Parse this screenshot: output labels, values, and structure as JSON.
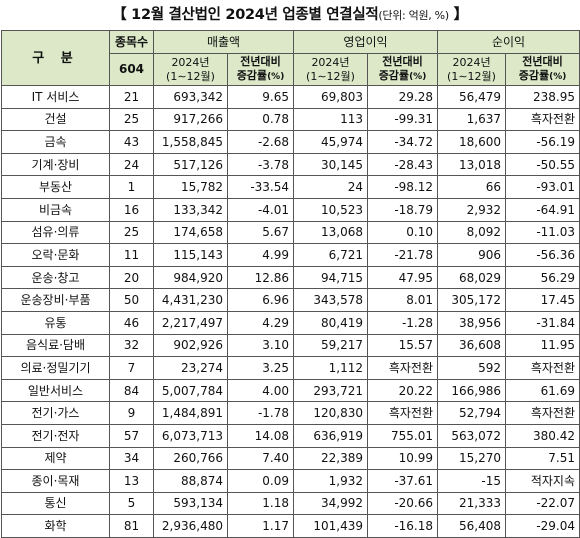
{
  "title": {
    "open": "【",
    "main": " 12월 결산법인 2024년 업종별 연결실적",
    "unit": "(단위: 억원, %)",
    "close": " 】"
  },
  "header": {
    "gubun": "구  분",
    "count_label": "종목수",
    "count_total": "604",
    "sales": "매출액",
    "op_income": "영업이익",
    "net_income": "순이익",
    "period_year": "2024년",
    "period_range": "(1∼12월)",
    "yoy_line1": "전년대비",
    "yoy_line2": "증감률",
    "yoy_unit": "(%)"
  },
  "rows": [
    {
      "name": "IT 서비스",
      "count": "21",
      "sales": "693,342",
      "sales_yoy": "9.65",
      "op": "69,803",
      "op_yoy": "29.28",
      "net": "56,479",
      "net_yoy": "238.95"
    },
    {
      "name": "건설",
      "count": "25",
      "sales": "917,266",
      "sales_yoy": "0.78",
      "op": "113",
      "op_yoy": "-99.31",
      "net": "1,637",
      "net_yoy": "흑자전환"
    },
    {
      "name": "금속",
      "count": "43",
      "sales": "1,558,845",
      "sales_yoy": "-2.68",
      "op": "45,974",
      "op_yoy": "-34.72",
      "net": "18,600",
      "net_yoy": "-56.19"
    },
    {
      "name": "기계·장비",
      "count": "24",
      "sales": "517,126",
      "sales_yoy": "-3.78",
      "op": "30,145",
      "op_yoy": "-28.43",
      "net": "13,018",
      "net_yoy": "-50.55"
    },
    {
      "name": "부동산",
      "count": "1",
      "sales": "15,782",
      "sales_yoy": "-33.54",
      "op": "24",
      "op_yoy": "-98.12",
      "net": "66",
      "net_yoy": "-93.01"
    },
    {
      "name": "비금속",
      "count": "16",
      "sales": "133,342",
      "sales_yoy": "-4.01",
      "op": "10,523",
      "op_yoy": "-18.79",
      "net": "2,932",
      "net_yoy": "-64.91"
    },
    {
      "name": "섬유·의류",
      "count": "25",
      "sales": "174,658",
      "sales_yoy": "5.67",
      "op": "13,068",
      "op_yoy": "0.10",
      "net": "8,092",
      "net_yoy": "-11.03"
    },
    {
      "name": "오락·문화",
      "count": "11",
      "sales": "115,143",
      "sales_yoy": "4.99",
      "op": "6,721",
      "op_yoy": "-21.78",
      "net": "906",
      "net_yoy": "-56.36"
    },
    {
      "name": "운송·창고",
      "count": "20",
      "sales": "984,920",
      "sales_yoy": "12.86",
      "op": "94,715",
      "op_yoy": "47.95",
      "net": "68,029",
      "net_yoy": "56.29"
    },
    {
      "name": "운송장비·부품",
      "count": "50",
      "sales": "4,431,230",
      "sales_yoy": "6.96",
      "op": "343,578",
      "op_yoy": "8.01",
      "net": "305,172",
      "net_yoy": "17.45"
    },
    {
      "name": "유통",
      "count": "46",
      "sales": "2,217,497",
      "sales_yoy": "4.29",
      "op": "80,419",
      "op_yoy": "-1.28",
      "net": "38,956",
      "net_yoy": "-31.84"
    },
    {
      "name": "음식료·담배",
      "count": "32",
      "sales": "902,926",
      "sales_yoy": "3.10",
      "op": "59,217",
      "op_yoy": "15.57",
      "net": "36,608",
      "net_yoy": "11.95"
    },
    {
      "name": "의료·정밀기기",
      "count": "7",
      "sales": "23,274",
      "sales_yoy": "3.25",
      "op": "1,112",
      "op_yoy": "흑자전환",
      "net": "592",
      "net_yoy": "흑자전환"
    },
    {
      "name": "일반서비스",
      "count": "84",
      "sales": "5,007,784",
      "sales_yoy": "4.00",
      "op": "293,721",
      "op_yoy": "20.22",
      "net": "166,986",
      "net_yoy": "61.69"
    },
    {
      "name": "전기·가스",
      "count": "9",
      "sales": "1,484,891",
      "sales_yoy": "-1.78",
      "op": "120,830",
      "op_yoy": "흑자전환",
      "net": "52,794",
      "net_yoy": "흑자전환"
    },
    {
      "name": "전기·전자",
      "count": "57",
      "sales": "6,073,713",
      "sales_yoy": "14.08",
      "op": "636,919",
      "op_yoy": "755.01",
      "net": "563,072",
      "net_yoy": "380.42"
    },
    {
      "name": "제약",
      "count": "34",
      "sales": "260,766",
      "sales_yoy": "7.40",
      "op": "22,389",
      "op_yoy": "10.99",
      "net": "15,270",
      "net_yoy": "7.51"
    },
    {
      "name": "종이·목재",
      "count": "13",
      "sales": "88,874",
      "sales_yoy": "0.09",
      "op": "1,932",
      "op_yoy": "-37.61",
      "net": "-15",
      "net_yoy": "적자지속"
    },
    {
      "name": "통신",
      "count": "5",
      "sales": "593,134",
      "sales_yoy": "1.18",
      "op": "34,992",
      "op_yoy": "-20.66",
      "net": "21,333",
      "net_yoy": "-22.07"
    },
    {
      "name": "화학",
      "count": "81",
      "sales": "2,936,480",
      "sales_yoy": "1.17",
      "op": "101,439",
      "op_yoy": "-16.18",
      "net": "56,408",
      "net_yoy": "-29.04"
    }
  ],
  "colors": {
    "header_bg": "#dce8c8",
    "border": "#555555"
  }
}
